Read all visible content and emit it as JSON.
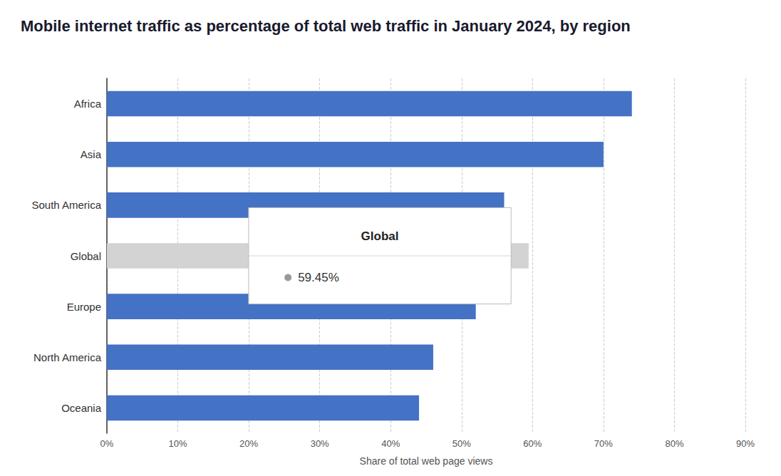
{
  "chart_data": {
    "type": "bar",
    "orientation": "horizontal",
    "title": "Mobile internet traffic as percentage of total web traffic in January 2024, by region",
    "xlabel": "Share of total web page views",
    "categories": [
      "Africa",
      "Asia",
      "South America",
      "Global",
      "Europe",
      "North America",
      "Oceania"
    ],
    "values": [
      74.0,
      70.0,
      56.0,
      59.45,
      52.0,
      46.0,
      44.0
    ],
    "colors": [
      "#4472C4",
      "#4472C4",
      "#4472C4",
      "#D3D3D3",
      "#4472C4",
      "#4472C4",
      "#4472C4"
    ],
    "xlim": [
      0,
      90
    ],
    "xticks": [
      {
        "value": 0,
        "label": "0%"
      },
      {
        "value": 10,
        "label": "10%"
      },
      {
        "value": 20,
        "label": "20%"
      },
      {
        "value": 30,
        "label": "30%"
      },
      {
        "value": 40,
        "label": "40%"
      },
      {
        "value": 50,
        "label": "50%"
      },
      {
        "value": 60,
        "label": "60%"
      },
      {
        "value": 70,
        "label": "70%"
      },
      {
        "value": 80,
        "label": "80%"
      },
      {
        "value": 90,
        "label": "90%"
      }
    ],
    "grid": true,
    "annotations": [
      {
        "text": "Global"
      },
      {
        "text": "59.45%",
        "color": "#999999"
      }
    ]
  }
}
